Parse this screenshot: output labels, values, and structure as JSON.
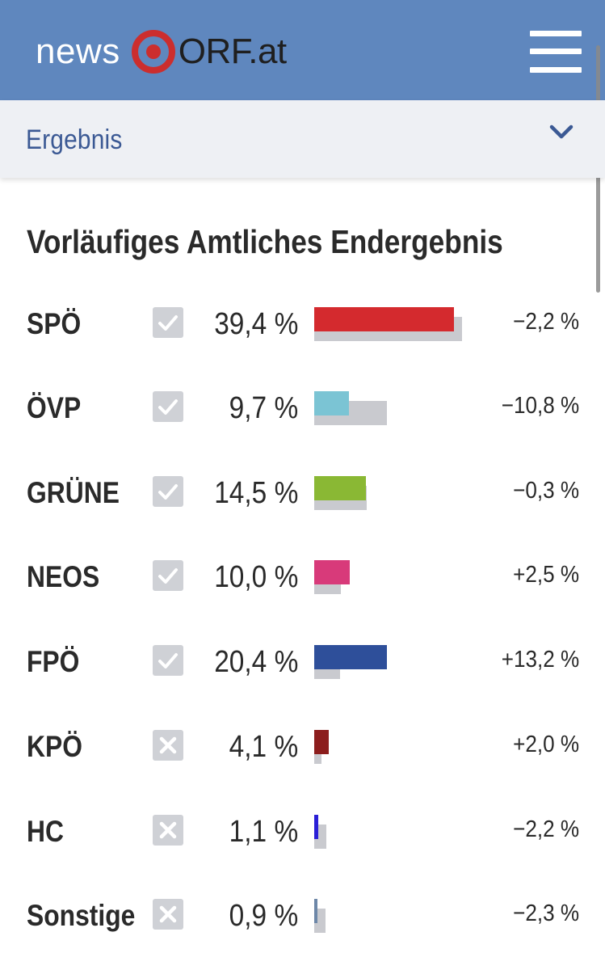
{
  "header": {
    "logo_news": "news",
    "logo_orf": "ORF.at",
    "brand_color": "#5f87be",
    "menu_icon": "hamburger-menu-icon"
  },
  "subnav": {
    "label": "Ergebnis",
    "icon": "chevron-down-icon"
  },
  "results": {
    "title": "Vorläufiges Amtliches Endergebnis",
    "scale_max_percent": 45,
    "parties": [
      {
        "name": "SPÖ",
        "status": "check",
        "percent": "39,4 %",
        "value": 39.4,
        "prev_value": 41.6,
        "change": "−2,2 %",
        "color": "#d42a2e"
      },
      {
        "name": "ÖVP",
        "status": "check",
        "percent": "9,7 %",
        "value": 9.7,
        "prev_value": 20.5,
        "change": "−10,8 %",
        "color": "#7bc4d4"
      },
      {
        "name": "GRÜNE",
        "status": "check",
        "percent": "14,5 %",
        "value": 14.5,
        "prev_value": 14.8,
        "change": "−0,3 %",
        "color": "#8ab834"
      },
      {
        "name": "NEOS",
        "status": "check",
        "percent": "10,0 %",
        "value": 10.0,
        "prev_value": 7.5,
        "change": "+2,5 %",
        "color": "#d83a7a"
      },
      {
        "name": "FPÖ",
        "status": "check",
        "percent": "20,4 %",
        "value": 20.4,
        "prev_value": 7.2,
        "change": "+13,2 %",
        "color": "#2e4f9a"
      },
      {
        "name": "KPÖ",
        "status": "cross",
        "percent": "4,1 %",
        "value": 4.1,
        "prev_value": 2.1,
        "change": "+2,0 %",
        "color": "#8c1d1d"
      },
      {
        "name": "HC",
        "status": "cross",
        "percent": "1,1 %",
        "value": 1.1,
        "prev_value": 3.3,
        "change": "−2,2 %",
        "color": "#2a1fd6"
      },
      {
        "name": "Sonstige",
        "status": "cross",
        "percent": "0,9 %",
        "value": 0.9,
        "prev_value": 3.2,
        "change": "−2,3 %",
        "color": "#6d87a8"
      }
    ]
  }
}
